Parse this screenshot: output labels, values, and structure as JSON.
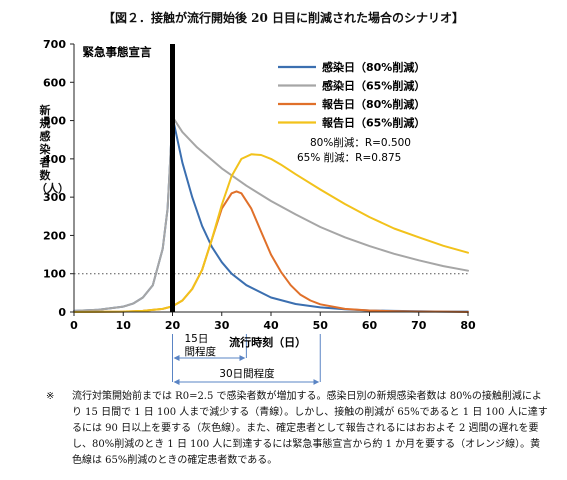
{
  "title": "【図２．接触が流行開始後 20 日目に削減された場合のシナリオ】",
  "chart_data": {
    "type": "line",
    "ylabel": "新規感染者数（人）",
    "xlabel": "流行時刻（日）",
    "xlim": [
      0,
      80
    ],
    "ylim": [
      0,
      700
    ],
    "x_ticks": [
      0,
      10,
      20,
      30,
      40,
      50,
      60,
      70,
      80
    ],
    "y_ticks": [
      0,
      100,
      200,
      300,
      400,
      500,
      600,
      700
    ],
    "reference_line": {
      "y": 100,
      "style": "dotted"
    },
    "event_line": {
      "x": 20,
      "label": "緊急事態宣言"
    },
    "series": [
      {
        "name": "感染日（80%削減）",
        "color": "#3b6fb0",
        "x": [
          0,
          5,
          10,
          12,
          14,
          16,
          18,
          19,
          20,
          22,
          24,
          26,
          28,
          30,
          32,
          35,
          40,
          45,
          50,
          55,
          60,
          65,
          70,
          75,
          80
        ],
        "y": [
          3,
          6,
          14,
          22,
          38,
          70,
          165,
          270,
          510,
          390,
          300,
          225,
          170,
          130,
          100,
          70,
          38,
          21,
          12,
          7,
          4,
          3,
          2,
          1,
          1
        ]
      },
      {
        "name": "感染日（65%削減）",
        "color": "#a6a6a6",
        "x": [
          0,
          5,
          10,
          12,
          14,
          16,
          18,
          19,
          20,
          22,
          25,
          30,
          35,
          40,
          45,
          50,
          55,
          60,
          65,
          70,
          75,
          80
        ],
        "y": [
          3,
          6,
          14,
          22,
          38,
          70,
          165,
          270,
          510,
          470,
          430,
          375,
          330,
          290,
          255,
          222,
          195,
          172,
          152,
          135,
          120,
          108
        ]
      },
      {
        "name": "報告日（80%削減）",
        "color": "#e0702a",
        "x": [
          0,
          10,
          14,
          18,
          20,
          22,
          24,
          26,
          28,
          30,
          32,
          33,
          34,
          36,
          38,
          40,
          42,
          44,
          46,
          48,
          50,
          55,
          60,
          65,
          70,
          75,
          80
        ],
        "y": [
          0,
          1,
          3,
          8,
          15,
          30,
          60,
          110,
          190,
          270,
          310,
          315,
          310,
          270,
          210,
          150,
          105,
          70,
          45,
          30,
          20,
          8,
          4,
          2,
          1,
          1,
          0
        ]
      },
      {
        "name": "報告日（65%削減）",
        "color": "#f2c21b",
        "x": [
          0,
          10,
          14,
          18,
          20,
          22,
          24,
          26,
          28,
          30,
          32,
          34,
          36,
          38,
          40,
          42,
          45,
          50,
          55,
          60,
          65,
          70,
          75,
          80
        ],
        "y": [
          0,
          1,
          3,
          8,
          15,
          30,
          60,
          110,
          190,
          280,
          355,
          400,
          412,
          410,
          400,
          385,
          360,
          320,
          282,
          248,
          218,
          195,
          173,
          155
        ]
      }
    ],
    "legend_position": "top-right",
    "annotations": [
      "80%削減：R=0.500",
      "65% 削減：R=0.875"
    ],
    "bracket_15": "15日間程度",
    "bracket_30": "30日間程度"
  },
  "note": {
    "mark": "※",
    "text": "流行対策開始前までは R0=2.5 で感染者数が増加する。感染日別の新規感染者数は 80%の接触削減により 15 日間で 1 日 100 人まで減少する（青線）。しかし、接触の削減が 65%であると 1 日 100 人に達するには 90 日以上を要する（灰色線）。また、確定患者として報告されるにはおおよそ 2 週間の遅れを要し、80%削減のとき 1 日 100 人に到達するには緊急事態宣言から約 1 か月を要する（オレンジ線）。黄色線は 65%削減のときの確定患者数である。"
  }
}
